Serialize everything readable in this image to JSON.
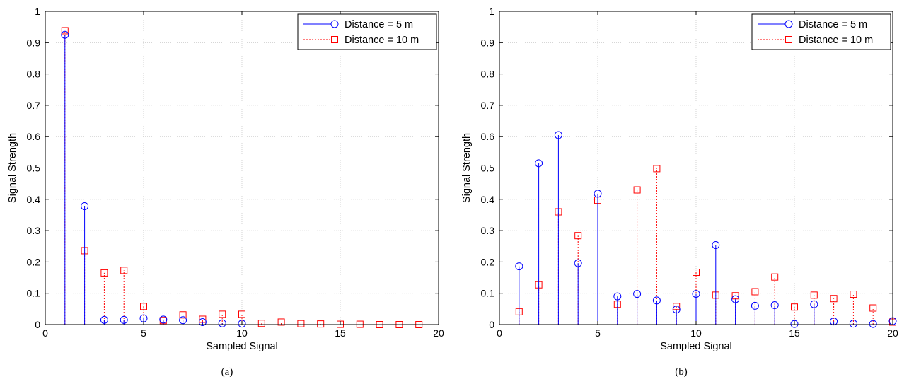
{
  "chart_data": [
    {
      "type": "stem",
      "caption": "(a)",
      "xlabel": "Sampled Signal",
      "ylabel": "Signal Strength",
      "xlim": [
        0,
        20
      ],
      "ylim": [
        0,
        1
      ],
      "xticks": [
        0,
        5,
        10,
        15,
        20
      ],
      "yticks": [
        0,
        0.1,
        0.2,
        0.3,
        0.4,
        0.5,
        0.6,
        0.7,
        0.8,
        0.9,
        1
      ],
      "grid": true,
      "legend_position": "top-right",
      "series": [
        {
          "name": "Distance = 5 m",
          "color": "#0000ff",
          "marker": "circle",
          "line": "solid",
          "x": [
            1,
            2,
            3,
            4,
            5,
            6,
            7,
            8,
            9,
            10
          ],
          "values": [
            0.925,
            0.378,
            0.015,
            0.015,
            0.02,
            0.016,
            0.014,
            0.008,
            0.004,
            0.003
          ]
        },
        {
          "name": "Distance = 10 m",
          "color": "#ff0000",
          "marker": "square",
          "line": "dotted",
          "x": [
            1,
            2,
            3,
            4,
            5,
            6,
            7,
            8,
            9,
            10,
            11,
            12,
            13,
            14,
            15,
            16,
            17,
            18,
            19
          ],
          "values": [
            0.938,
            0.236,
            0.165,
            0.173,
            0.058,
            0.013,
            0.031,
            0.017,
            0.033,
            0.033,
            0.004,
            0.008,
            0.003,
            0.002,
            0.001,
            0.001,
            0.0,
            0.0,
            0.0
          ]
        }
      ]
    },
    {
      "type": "stem",
      "caption": "(b)",
      "xlabel": "Sampled Signal",
      "ylabel": "Signal Strength",
      "xlim": [
        0,
        20
      ],
      "ylim": [
        0,
        1
      ],
      "xticks": [
        0,
        5,
        10,
        15,
        20
      ],
      "yticks": [
        0,
        0.1,
        0.2,
        0.3,
        0.4,
        0.5,
        0.6,
        0.7,
        0.8,
        0.9,
        1
      ],
      "grid": true,
      "legend_position": "top-right",
      "series": [
        {
          "name": "Distance = 5 m",
          "color": "#0000ff",
          "marker": "circle",
          "line": "solid",
          "x": [
            1,
            2,
            3,
            4,
            5,
            6,
            7,
            8,
            9,
            10,
            11,
            12,
            13,
            14,
            15,
            16,
            17,
            18,
            19,
            20
          ],
          "values": [
            0.186,
            0.515,
            0.605,
            0.196,
            0.418,
            0.09,
            0.098,
            0.077,
            0.048,
            0.098,
            0.254,
            0.081,
            0.06,
            0.062,
            0.002,
            0.065,
            0.01,
            0.003,
            0.002,
            0.011
          ]
        },
        {
          "name": "Distance = 10 m",
          "color": "#ff0000",
          "marker": "square",
          "line": "dotted",
          "x": [
            1,
            2,
            3,
            4,
            5,
            6,
            7,
            8,
            9,
            10,
            11,
            12,
            13,
            14,
            15,
            16,
            17,
            18,
            19,
            20
          ],
          "values": [
            0.041,
            0.127,
            0.36,
            0.284,
            0.397,
            0.065,
            0.43,
            0.498,
            0.058,
            0.167,
            0.094,
            0.092,
            0.105,
            0.152,
            0.056,
            0.094,
            0.083,
            0.097,
            0.053,
            0.008
          ]
        }
      ]
    }
  ]
}
